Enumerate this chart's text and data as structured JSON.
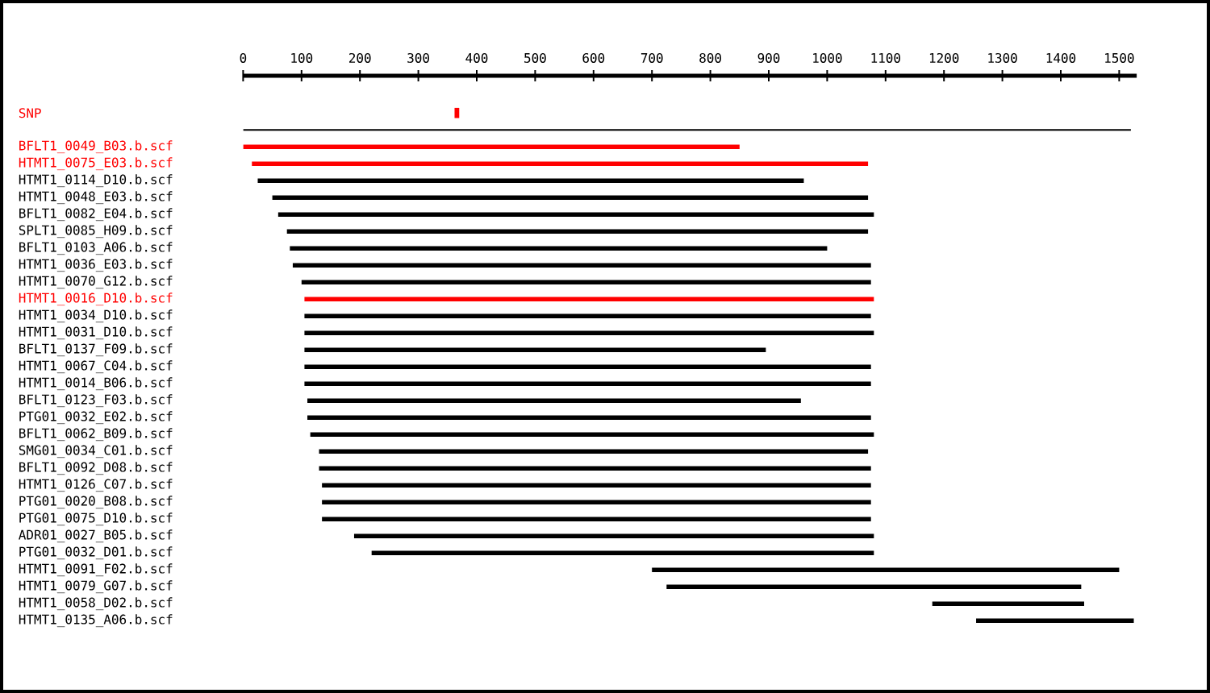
{
  "chart_data": {
    "type": "bar",
    "orientation": "horizontal",
    "categories": [
      "SNP",
      null,
      "BFLT1_0049_B03.b.scf",
      "HTMT1_0075_E03.b.scf",
      "HTMT1_0114_D10.b.scf",
      "HTMT1_0048_E03.b.scf",
      "BFLT1_0082_E04.b.scf",
      "SPLT1_0085_H09.b.scf",
      "BFLT1_0103_A06.b.scf",
      "HTMT1_0036_E03.b.scf",
      "HTMT1_0070_G12.b.scf",
      "HTMT1_0016_D10.b.scf",
      "HTMT1_0034_D10.b.scf",
      "HTMT1_0031_D10.b.scf",
      "BFLT1_0137_F09.b.scf",
      "HTMT1_0067_C04.b.scf",
      "HTMT1_0014_B06.b.scf",
      "BFLT1_0123_F03.b.scf",
      "PTG01_0032_E02.b.scf",
      "BFLT1_0062_B09.b.scf",
      "SMG01_0034_C01.b.scf",
      "BFLT1_0092_D08.b.scf",
      "HTMT1_0126_C07.b.scf",
      "PTG01_0020_B08.b.scf",
      "PTG01_0075_D10.b.scf",
      "ADR01_0027_B05.b.scf",
      "PTG01_0032_D01.b.scf",
      "HTMT1_0091_F02.b.scf",
      "HTMT1_0079_G07.b.scf",
      "HTMT1_0058_D02.b.scf",
      "HTMT1_0135_A06.b.scf"
    ],
    "base": [
      362,
      0,
      0,
      15,
      25,
      50,
      60,
      75,
      80,
      85,
      100,
      105,
      105,
      105,
      105,
      105,
      105,
      110,
      110,
      115,
      130,
      130,
      135,
      135,
      135,
      190,
      220,
      700,
      725,
      1180,
      1255
    ],
    "values": [
      8,
      1520,
      850,
      1055,
      935,
      1020,
      1020,
      995,
      920,
      990,
      975,
      975,
      970,
      975,
      790,
      970,
      970,
      845,
      965,
      965,
      940,
      945,
      940,
      940,
      940,
      890,
      860,
      800,
      710,
      260,
      270
    ],
    "colors": [
      "#ff0000",
      "#000000",
      "#ff0000",
      "#ff0000",
      "#000000",
      "#000000",
      "#000000",
      "#000000",
      "#000000",
      "#000000",
      "#000000",
      "#ff0000",
      "#000000",
      "#000000",
      "#000000",
      "#000000",
      "#000000",
      "#000000",
      "#000000",
      "#000000",
      "#000000",
      "#000000",
      "#000000",
      "#000000",
      "#000000",
      "#000000",
      "#000000",
      "#000000",
      "#000000",
      "#000000",
      "#000000"
    ],
    "xlim": [
      0,
      1530
    ],
    "xticks": [
      0,
      100,
      200,
      300,
      400,
      500,
      600,
      700,
      800,
      900,
      1000,
      1100,
      1200,
      1300,
      1400,
      1500
    ]
  }
}
